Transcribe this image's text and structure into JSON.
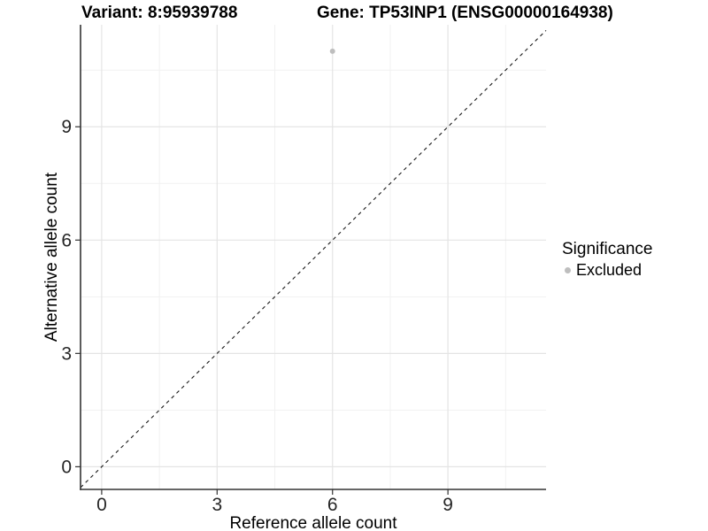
{
  "figure": {
    "title_left": "Variant: 8:95939788",
    "title_right": "Gene: TP53INP1 (ENSG00000164938)"
  },
  "legend": {
    "title": "Significance",
    "items": [
      {
        "label": "Excluded",
        "color": "#bebebe",
        "marker": "circle"
      }
    ]
  },
  "chart_data": {
    "type": "scatter",
    "title": "Variant: 8:95939788 | Gene: TP53INP1 (ENSG00000164938)",
    "xlabel": "Reference allele count",
    "ylabel": "Alternative allele count",
    "xlim": [
      -0.55,
      11.55
    ],
    "ylim": [
      -0.6,
      11.7
    ],
    "x_ticks": [
      0,
      3,
      6,
      9
    ],
    "y_ticks": [
      0,
      3,
      6,
      9
    ],
    "grid": {
      "major": true,
      "minor": true
    },
    "legend_position": "right",
    "series": [
      {
        "name": "Excluded",
        "color": "#bebebe",
        "points": [
          {
            "x": 6,
            "y": 11
          }
        ]
      }
    ],
    "reference_line": {
      "type": "identity",
      "slope": 1,
      "intercept": 0,
      "style": "dashed"
    }
  },
  "colors": {
    "background": "#ffffff",
    "grid_major": "#e4e4e4",
    "grid_minor": "#f1f1f1",
    "axis_line": "#333333",
    "tick_text": "#262626",
    "title_text": "#000000",
    "point": "#bebebe",
    "reference_line": "#1a1a1a"
  }
}
